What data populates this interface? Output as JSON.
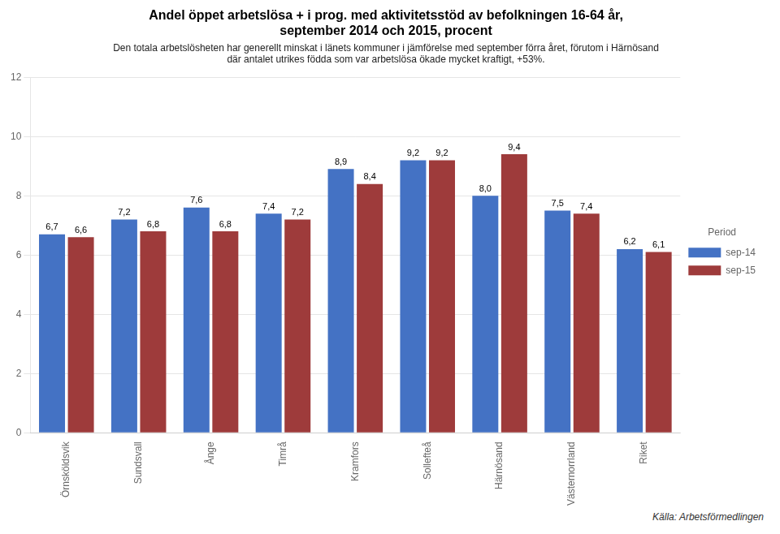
{
  "chart_data": {
    "type": "bar",
    "title": "Andel öppet arbetslösa + i prog. med aktivitetsstöd av befolkningen 16-64 år,\nseptember 2014 och 2015, procent",
    "subtitle": "Den totala arbetslösheten har generellt minskat i länets kommuner i jämförelse med september förra året, förutom i Härnösand\ndär antalet utrikes födda som var arbetslösa ökade mycket kraftigt, +53%.",
    "source": "Källa: Arbetsförmedlingen",
    "categories": [
      "Örnsköldsvik",
      "Sundsvall",
      "Ånge",
      "Timrå",
      "Kramfors",
      "Sollefteå",
      "Härnösand",
      "Västernorrland",
      "Riket"
    ],
    "series": [
      {
        "name": "sep-14",
        "color": "#4472C4",
        "values": [
          6.7,
          7.2,
          7.6,
          7.4,
          8.9,
          9.2,
          8.0,
          7.5,
          6.2
        ],
        "value_labels": [
          "6,7",
          "7,2",
          "7,6",
          "7,4",
          "8,9",
          "9,2",
          "8,0",
          "7,5",
          "6,2"
        ]
      },
      {
        "name": "sep-15",
        "color": "#9E3B3B",
        "values": [
          6.6,
          6.8,
          6.8,
          7.2,
          8.4,
          9.2,
          9.4,
          7.4,
          6.1
        ],
        "value_labels": [
          "6,6",
          "6,8",
          "6,8",
          "7,2",
          "8,4",
          "9,2",
          "9,4",
          "7,4",
          "6,1"
        ]
      }
    ],
    "ylim": [
      0,
      12
    ],
    "yticks": [
      0,
      2,
      4,
      6,
      8,
      10,
      12
    ],
    "grid": true,
    "legend": "right",
    "legend_title": "Period",
    "data_labels": true
  }
}
